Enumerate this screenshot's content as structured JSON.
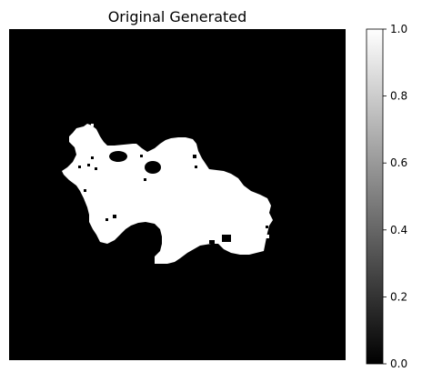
{
  "chart_data": {
    "type": "heatmap",
    "title": "Original Generated",
    "colormap": "gray",
    "axes_visible": false,
    "grid": false,
    "colorbar": {
      "position": "right",
      "range": [
        0.0,
        1.0
      ],
      "ticks": [
        "0.0",
        "0.2",
        "0.4",
        "0.6",
        "0.8",
        "1.0"
      ],
      "tick_values": [
        0.0,
        0.2,
        0.4,
        0.6,
        0.8,
        1.0
      ]
    },
    "image": {
      "description": "binary mask",
      "background_value": 0.0,
      "mask_value": 1.0
    }
  }
}
